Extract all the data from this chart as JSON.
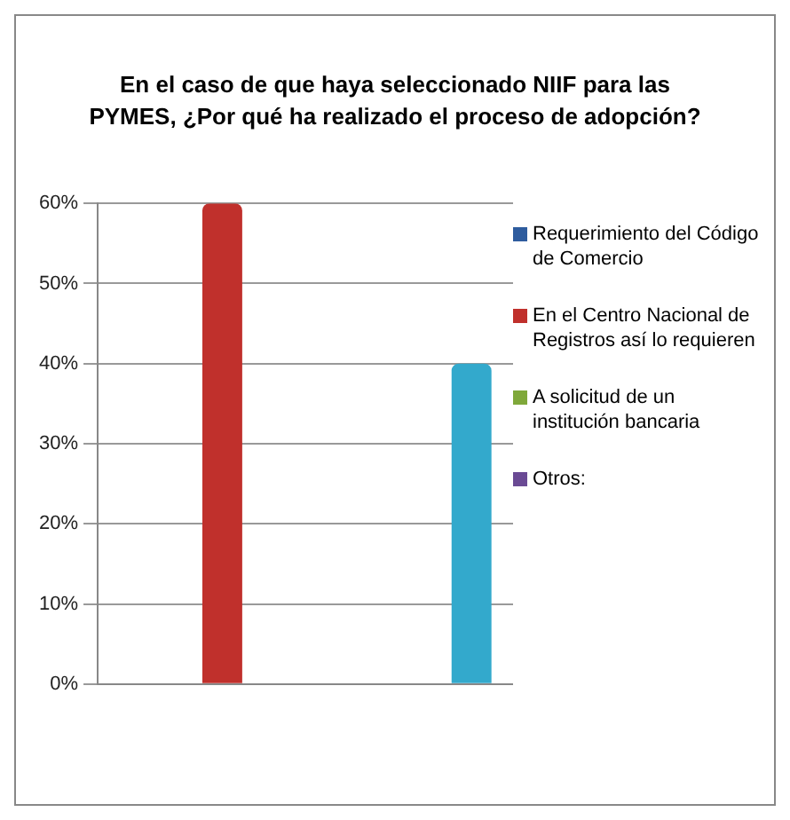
{
  "chart_data": {
    "type": "bar",
    "title": "En el caso de que haya seleccionado NIIF para las PYMES, ¿Por qué ha realizado el proceso de adopción?",
    "categories": [
      null,
      null,
      null,
      null,
      null
    ],
    "series": [
      {
        "name": "Requerimiento del Código de Comercio",
        "color": "#2e5c9e",
        "values": [
          0,
          null,
          null,
          null,
          null
        ]
      },
      {
        "name": "En el Centro Nacional de Registros así lo requieren",
        "color": "#c0302c",
        "values": [
          null,
          60,
          null,
          null,
          null
        ]
      },
      {
        "name": "A solicitud de un institución bancaria",
        "color": "#7fa83a",
        "values": [
          null,
          null,
          0,
          null,
          null
        ]
      },
      {
        "name": "Otros:",
        "color": "#6a4a94",
        "values": [
          null,
          null,
          null,
          0,
          null
        ]
      },
      {
        "color": "#33a9cc",
        "values": [
          null,
          null,
          null,
          null,
          40
        ]
      }
    ],
    "ylim": [
      0,
      60
    ],
    "yticks": [
      {
        "value": 0,
        "label": "0%"
      },
      {
        "value": 10,
        "label": "10%"
      },
      {
        "value": 20,
        "label": "20%"
      },
      {
        "value": 30,
        "label": "30%"
      },
      {
        "value": 40,
        "label": "40%"
      },
      {
        "value": 50,
        "label": "50%"
      },
      {
        "value": 60,
        "label": "60%"
      }
    ],
    "grid": "y",
    "legend": "right"
  }
}
